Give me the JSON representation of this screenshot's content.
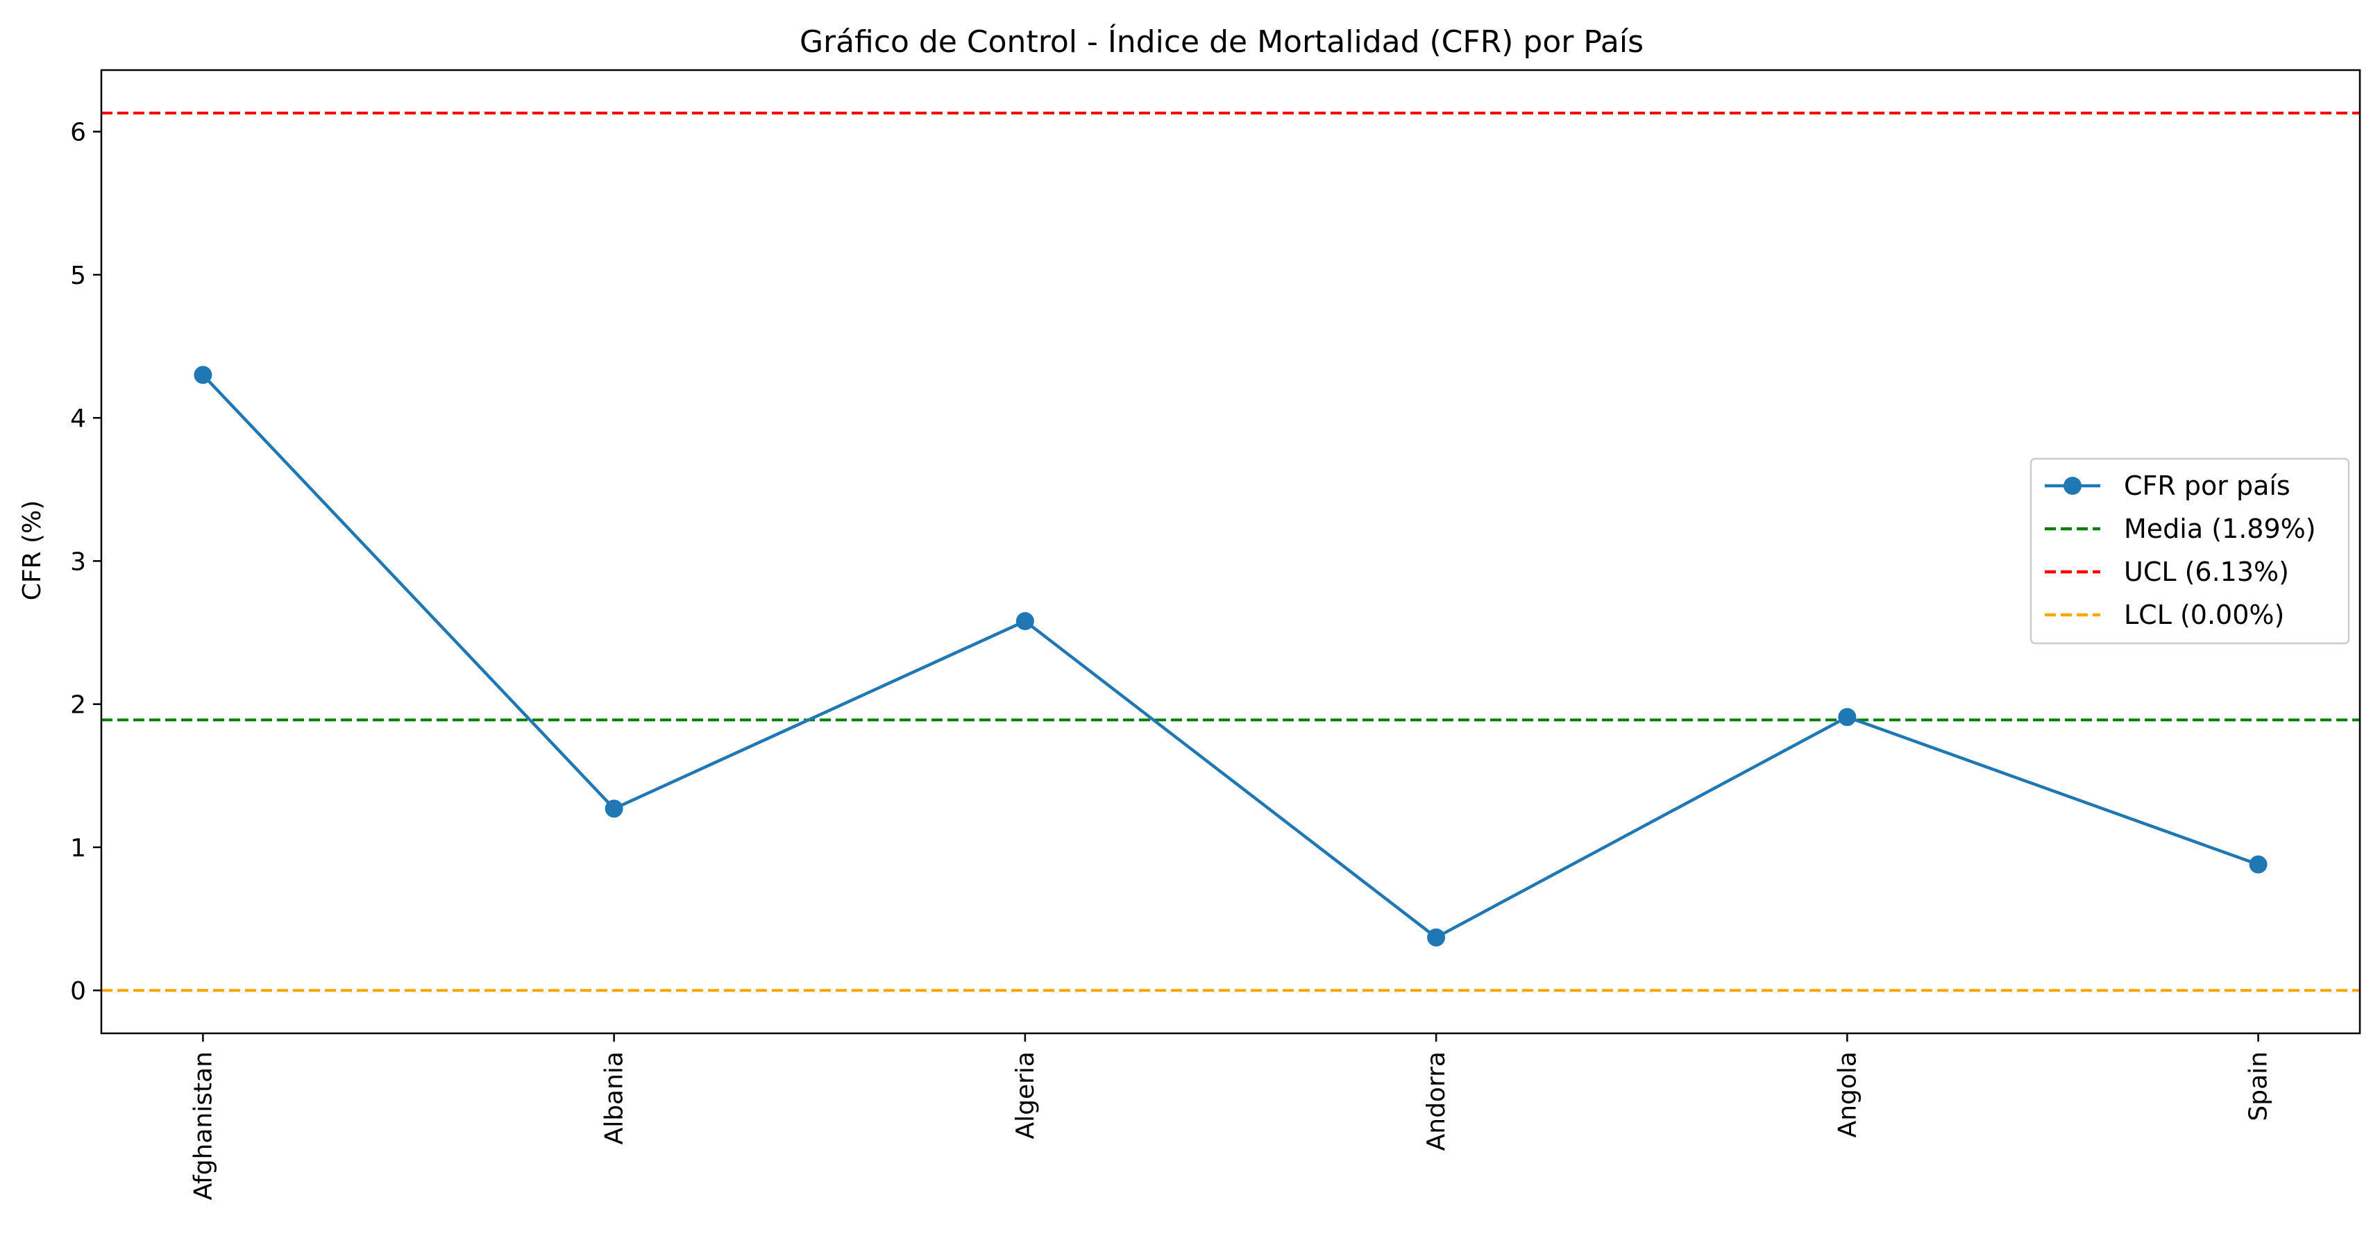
{
  "chart_data": {
    "type": "line",
    "title": "Gráfico de Control - Índice de Mortalidad (CFR) por País",
    "xlabel": "",
    "ylabel": "CFR (%)",
    "categories": [
      "Afghanistan",
      "Albania",
      "Algeria",
      "Andorra",
      "Angola",
      "Spain"
    ],
    "series": [
      {
        "name": "CFR por país",
        "values": [
          4.3,
          1.27,
          2.58,
          0.37,
          1.91,
          0.88
        ],
        "color": "#1f77b4"
      }
    ],
    "reference_lines": [
      {
        "name": "Media (1.89%)",
        "value": 1.89,
        "color": "#008000",
        "style": "dashed"
      },
      {
        "name": "UCL (6.13%)",
        "value": 6.13,
        "color": "#ff0000",
        "style": "dashed"
      },
      {
        "name": "LCL (0.00%)",
        "value": 0.0,
        "color": "#ffa500",
        "style": "dashed"
      }
    ],
    "ylim": [
      -0.3,
      6.43
    ],
    "yticks": [
      "0",
      "1",
      "2",
      "3",
      "4",
      "5",
      "6"
    ],
    "grid": false,
    "legend_position": "center-right"
  }
}
